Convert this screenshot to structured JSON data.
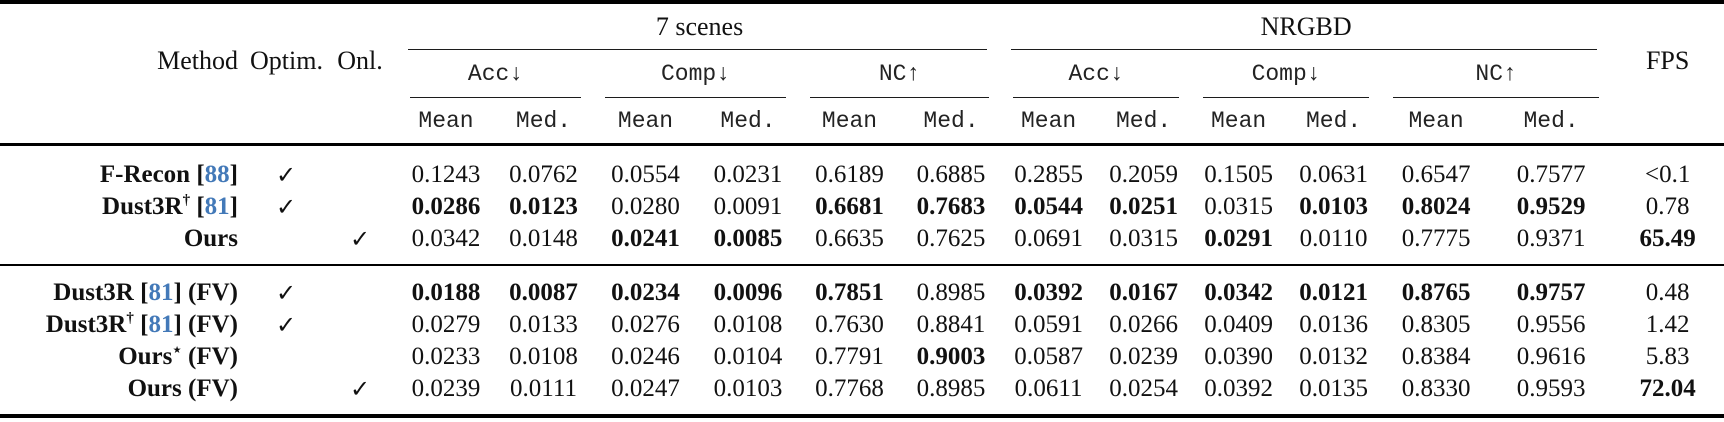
{
  "colors": {
    "citation_blue": "#4379b8",
    "text": "#111111",
    "rule": "#000000"
  },
  "checkmark": "✓",
  "headers": {
    "method": "Method",
    "optim": "Optim.",
    "onl": "Onl.",
    "fps": "FPS",
    "mean": "Mean",
    "med": "Med."
  },
  "groups": [
    {
      "label": "7 scenes",
      "metrics": [
        "Acc↓",
        "Comp↓",
        "NC↑"
      ]
    },
    {
      "label": "NRGBD",
      "metrics": [
        "Acc↓",
        "Comp↓",
        "NC↑"
      ]
    }
  ],
  "sections": [
    {
      "rows": [
        {
          "method": {
            "name": "F-Recon",
            "sup": "",
            "cite": "88",
            "suffix": ""
          },
          "optim": true,
          "onl": false,
          "values": [
            "0.1243",
            "0.0762",
            "0.0554",
            "0.0231",
            "0.6189",
            "0.6885",
            "0.2855",
            "0.2059",
            "0.1505",
            "0.0631",
            "0.6547",
            "0.7577",
            "<0.1"
          ],
          "bold": [
            false,
            false,
            false,
            false,
            false,
            false,
            false,
            false,
            false,
            false,
            false,
            false,
            false
          ]
        },
        {
          "method": {
            "name": "Dust3R",
            "sup": "†",
            "cite": "81",
            "suffix": ""
          },
          "optim": true,
          "onl": false,
          "values": [
            "0.0286",
            "0.0123",
            "0.0280",
            "0.0091",
            "0.6681",
            "0.7683",
            "0.0544",
            "0.0251",
            "0.0315",
            "0.0103",
            "0.8024",
            "0.9529",
            "0.78"
          ],
          "bold": [
            true,
            true,
            false,
            false,
            true,
            true,
            true,
            true,
            false,
            true,
            true,
            true,
            false
          ]
        },
        {
          "method": {
            "name": "Ours",
            "sup": "",
            "cite": "",
            "suffix": ""
          },
          "optim": false,
          "onl": true,
          "values": [
            "0.0342",
            "0.0148",
            "0.0241",
            "0.0085",
            "0.6635",
            "0.7625",
            "0.0691",
            "0.0315",
            "0.0291",
            "0.0110",
            "0.7775",
            "0.9371",
            "65.49"
          ],
          "bold": [
            false,
            false,
            true,
            true,
            false,
            false,
            false,
            false,
            true,
            false,
            false,
            false,
            true
          ]
        }
      ]
    },
    {
      "rows": [
        {
          "method": {
            "name": "Dust3R",
            "sup": "",
            "cite": "81",
            "suffix": "(FV)"
          },
          "optim": true,
          "onl": false,
          "values": [
            "0.0188",
            "0.0087",
            "0.0234",
            "0.0096",
            "0.7851",
            "0.8985",
            "0.0392",
            "0.0167",
            "0.0342",
            "0.0121",
            "0.8765",
            "0.9757",
            "0.48"
          ],
          "bold": [
            true,
            true,
            true,
            true,
            true,
            false,
            true,
            true,
            true,
            true,
            true,
            true,
            false
          ]
        },
        {
          "method": {
            "name": "Dust3R",
            "sup": "†",
            "cite": "81",
            "suffix": "(FV)"
          },
          "optim": true,
          "onl": false,
          "values": [
            "0.0279",
            "0.0133",
            "0.0276",
            "0.0108",
            "0.7630",
            "0.8841",
            "0.0591",
            "0.0266",
            "0.0409",
            "0.0136",
            "0.8305",
            "0.9556",
            "1.42"
          ],
          "bold": [
            false,
            false,
            false,
            false,
            false,
            false,
            false,
            false,
            false,
            false,
            false,
            false,
            false
          ]
        },
        {
          "method": {
            "name": "Ours",
            "sup": "⋆",
            "cite": "",
            "suffix": "(FV)"
          },
          "optim": false,
          "onl": false,
          "values": [
            "0.0233",
            "0.0108",
            "0.0246",
            "0.0104",
            "0.7791",
            "0.9003",
            "0.0587",
            "0.0239",
            "0.0390",
            "0.0132",
            "0.8384",
            "0.9616",
            "5.83"
          ],
          "bold": [
            false,
            false,
            false,
            false,
            false,
            true,
            false,
            false,
            false,
            false,
            false,
            false,
            false
          ]
        },
        {
          "method": {
            "name": "Ours",
            "sup": "",
            "cite": "",
            "suffix": "(FV)"
          },
          "optim": false,
          "onl": true,
          "values": [
            "0.0239",
            "0.0111",
            "0.0247",
            "0.0103",
            "0.7768",
            "0.8985",
            "0.0611",
            "0.0254",
            "0.0392",
            "0.0135",
            "0.8330",
            "0.9593",
            "72.04"
          ],
          "bold": [
            false,
            false,
            false,
            false,
            false,
            false,
            false,
            false,
            false,
            false,
            false,
            false,
            true
          ]
        }
      ]
    }
  ]
}
